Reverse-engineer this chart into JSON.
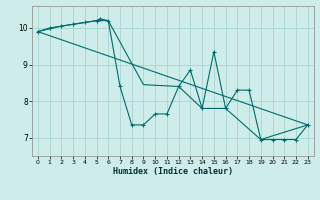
{
  "xlabel": "Humidex (Indice chaleur)",
  "bg_color": "#ceecea",
  "grid_color": "#aed8d4",
  "line_color": "#006b6b",
  "xlim": [
    -0.5,
    23.5
  ],
  "ylim": [
    6.5,
    10.6
  ],
  "yticks": [
    7,
    8,
    9,
    10
  ],
  "xticks": [
    0,
    1,
    2,
    3,
    4,
    5,
    6,
    7,
    8,
    9,
    10,
    11,
    12,
    13,
    14,
    15,
    16,
    17,
    18,
    19,
    20,
    21,
    22,
    23
  ],
  "series1": [
    [
      0,
      9.9
    ],
    [
      1,
      10.0
    ],
    [
      2,
      10.05
    ],
    [
      3,
      10.1
    ],
    [
      4,
      10.15
    ],
    [
      5,
      10.2
    ],
    [
      5.3,
      10.25
    ],
    [
      6,
      10.2
    ],
    [
      7,
      8.4
    ],
    [
      8,
      7.35
    ],
    [
      9,
      7.35
    ],
    [
      10,
      7.65
    ],
    [
      11,
      7.65
    ],
    [
      12,
      8.4
    ],
    [
      13,
      8.85
    ],
    [
      14,
      7.8
    ],
    [
      15,
      9.35
    ],
    [
      16,
      7.8
    ],
    [
      17,
      8.3
    ],
    [
      18,
      8.3
    ],
    [
      19,
      6.95
    ],
    [
      20,
      6.95
    ],
    [
      21,
      6.95
    ],
    [
      22,
      6.95
    ],
    [
      23,
      7.35
    ]
  ],
  "series2": [
    [
      0,
      9.9
    ],
    [
      23,
      7.35
    ]
  ],
  "series3": [
    [
      0,
      9.9
    ],
    [
      2,
      10.05
    ],
    [
      5,
      10.2
    ],
    [
      6,
      10.2
    ],
    [
      9,
      8.45
    ],
    [
      12,
      8.4
    ],
    [
      14,
      7.8
    ],
    [
      16,
      7.8
    ],
    [
      19,
      6.95
    ],
    [
      23,
      7.35
    ]
  ]
}
